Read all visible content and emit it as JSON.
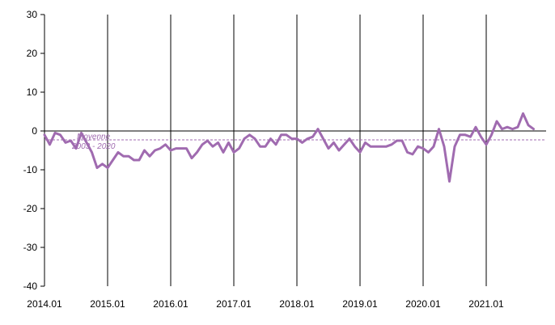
{
  "chart_data": {
    "type": "line",
    "x_start": "2014-01",
    "x_ticks": [
      "2014.01",
      "2015.01",
      "2016.01",
      "2017.01",
      "2018.01",
      "2019.01",
      "2020.01",
      "2021.01"
    ],
    "ylim": [
      -40,
      30
    ],
    "y_ticks": [
      "30",
      "20",
      "10",
      "0",
      "-10",
      "-20",
      "-30",
      "-40"
    ],
    "grid": "vertical lines at year starts",
    "series": [
      {
        "color": "#a06bb0",
        "values": [
          -1,
          -3.5,
          -0.5,
          -1,
          -3,
          -2.5,
          -4.5,
          -0.5,
          -3,
          -5.5,
          -9.5,
          -8.5,
          -9.5,
          -7.5,
          -5.5,
          -6.5,
          -6.5,
          -7.5,
          -7.5,
          -5,
          -6.5,
          -5,
          -4.5,
          -3.5,
          -5,
          -4.5,
          -4.5,
          -4.5,
          -7,
          -5.5,
          -3.5,
          -2.5,
          -4,
          -3,
          -5.5,
          -3,
          -5.5,
          -4.5,
          -2,
          -1,
          -2,
          -4,
          -4,
          -2,
          -3.5,
          -1,
          -1,
          -2,
          -2,
          -3,
          -2,
          -1.5,
          0.5,
          -2,
          -4.5,
          -3,
          -5,
          -3.5,
          -2,
          -4,
          -5.5,
          -3,
          -4,
          -4,
          -4,
          -4,
          -3.5,
          -2.5,
          -2.5,
          -5.5,
          -6,
          -4,
          -4.5,
          -5.5,
          -4,
          0.5,
          -4,
          -13,
          -4,
          -1,
          -1,
          -1.5,
          1,
          -1.5,
          -3.5,
          -1,
          2.5,
          0.5,
          1,
          0.5,
          1,
          4.5,
          1.5,
          0.5
        ]
      }
    ],
    "reference_line": {
      "value": -2.3,
      "label_line1": "Moyenne",
      "label_line2": "2003 - 2020",
      "color": "#a06bb0"
    }
  }
}
